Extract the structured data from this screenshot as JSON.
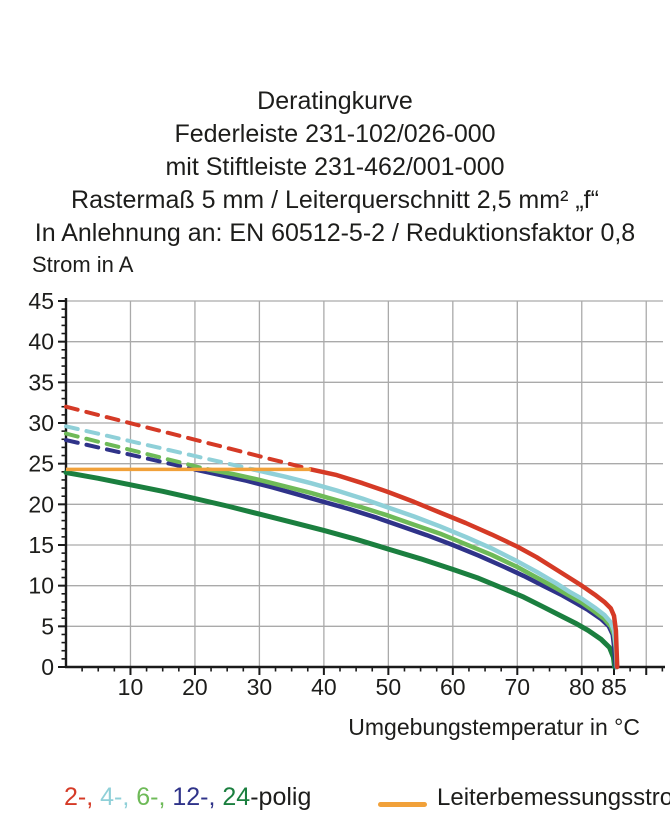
{
  "title_block": {
    "lines": [
      "Deratingkurve",
      "Federleiste 231-102/026-000",
      "mit Stiftleiste 231-462/001-000",
      "Rastermaß 5 mm / Leiterquerschnitt 2,5 mm² „f“",
      "In Anlehnung an: EN 60512-5-2 / Reduktionsfaktor 0,8"
    ]
  },
  "colors": {
    "pole2": "#d53a26",
    "pole4": "#8fd0d8",
    "pole6": "#6eba58",
    "pole12": "#2f3389",
    "pole24": "#1b7f3f",
    "rated": "#f1a13a",
    "grid": "#aaaaaa",
    "axis": "#1a1a1a",
    "text": "#1d1d1b"
  },
  "chart_data": {
    "type": "line",
    "title": "Deratingkurve",
    "ylabel": "Strom in A",
    "xlabel": "Umgebungstemperatur in °C",
    "xlim": [
      0,
      92.6
    ],
    "ylim": [
      0,
      45
    ],
    "grid": true,
    "x_gridlines": [
      10,
      20,
      30,
      40,
      50,
      60,
      70,
      80,
      90
    ],
    "y_gridlines": [
      5,
      10,
      15,
      20,
      25,
      30,
      35,
      40,
      45
    ],
    "x_major_ticks": [
      10,
      20,
      30,
      40,
      50,
      60,
      70,
      80,
      85,
      90
    ],
    "x_tick_labels": [
      10,
      20,
      30,
      40,
      50,
      60,
      70,
      80,
      85
    ],
    "x_minor_step": 2.5,
    "y_major_ticks": [
      0,
      5,
      10,
      15,
      20,
      25,
      30,
      35,
      40,
      45
    ],
    "y_tick_labels": [
      0,
      5,
      10,
      15,
      20,
      25,
      30,
      35,
      40,
      45
    ],
    "y_minor_step": 1,
    "rated_current_line": {
      "label": "Leiterbemessungsstrom",
      "color": "#f1a13a",
      "value": 24.3,
      "x_start": 0,
      "x_end": 38
    },
    "series": [
      {
        "name": "24-polig",
        "color": "#1b7f3f",
        "width": 5,
        "dashed_points": [],
        "solid_points": [
          [
            0,
            23.9
          ],
          [
            5,
            23.2
          ],
          [
            10,
            22.4
          ],
          [
            15,
            21.6
          ],
          [
            20,
            20.7
          ],
          [
            25,
            19.8
          ],
          [
            30,
            18.8
          ],
          [
            35,
            17.8
          ],
          [
            40,
            16.8
          ],
          [
            45,
            15.7
          ],
          [
            50,
            14.5
          ],
          [
            55,
            13.3
          ],
          [
            60,
            12
          ],
          [
            64,
            10.9
          ],
          [
            68,
            9.6
          ],
          [
            71,
            8.6
          ],
          [
            74,
            7.4
          ],
          [
            77,
            6.2
          ],
          [
            79,
            5.4
          ],
          [
            81,
            4.5
          ],
          [
            83,
            3.4
          ],
          [
            84.3,
            2.4
          ],
          [
            84.9,
            1.2
          ],
          [
            85.1,
            0
          ]
        ]
      },
      {
        "name": "12-polig",
        "color": "#2f3389",
        "width": 4.5,
        "dashed_points": [
          [
            0,
            27.9
          ],
          [
            20,
            24.3
          ]
        ],
        "solid_points": [
          [
            20,
            24.3
          ],
          [
            24,
            23.6
          ],
          [
            28,
            22.9
          ],
          [
            32,
            22.1
          ],
          [
            36,
            21.2
          ],
          [
            40,
            20.3
          ],
          [
            44,
            19.4
          ],
          [
            48,
            18.4
          ],
          [
            52,
            17.3
          ],
          [
            56,
            16.2
          ],
          [
            60,
            15
          ],
          [
            64,
            13.7
          ],
          [
            68,
            12.3
          ],
          [
            71,
            11.2
          ],
          [
            74,
            10
          ],
          [
            77,
            8.8
          ],
          [
            79,
            7.9
          ],
          [
            81,
            7
          ],
          [
            83,
            5.9
          ],
          [
            84.2,
            5
          ],
          [
            84.8,
            4
          ],
          [
            85.1,
            2
          ],
          [
            85.3,
            0
          ]
        ]
      },
      {
        "name": "6-polig",
        "color": "#6eba58",
        "width": 4.5,
        "dashed_points": [
          [
            0,
            28.7
          ],
          [
            22,
            24.3
          ]
        ],
        "solid_points": [
          [
            22,
            24.3
          ],
          [
            26,
            23.7
          ],
          [
            30,
            23
          ],
          [
            34,
            22.2
          ],
          [
            38,
            21.4
          ],
          [
            42,
            20.5
          ],
          [
            46,
            19.6
          ],
          [
            50,
            18.6
          ],
          [
            54,
            17.5
          ],
          [
            58,
            16.4
          ],
          [
            62,
            15.1
          ],
          [
            66,
            13.8
          ],
          [
            70,
            12.3
          ],
          [
            73,
            11
          ],
          [
            76,
            9.7
          ],
          [
            78,
            8.8
          ],
          [
            80,
            7.9
          ],
          [
            82,
            6.8
          ],
          [
            83.5,
            5.9
          ],
          [
            84.5,
            5
          ],
          [
            85,
            4
          ],
          [
            85.3,
            2.2
          ],
          [
            85.42,
            0
          ]
        ]
      },
      {
        "name": "4-polig",
        "color": "#8fd0d8",
        "width": 4.5,
        "dashed_points": [
          [
            0,
            29.6
          ],
          [
            29,
            24.3
          ]
        ],
        "solid_points": [
          [
            29,
            24.3
          ],
          [
            34,
            23.4
          ],
          [
            38,
            22.6
          ],
          [
            42,
            21.7
          ],
          [
            46,
            20.7
          ],
          [
            50,
            19.6
          ],
          [
            54,
            18.5
          ],
          [
            58,
            17.3
          ],
          [
            62,
            16
          ],
          [
            66,
            14.6
          ],
          [
            70,
            13
          ],
          [
            73,
            11.7
          ],
          [
            76,
            10.3
          ],
          [
            78,
            9.3
          ],
          [
            80,
            8.4
          ],
          [
            82,
            7.3
          ],
          [
            83.5,
            6.4
          ],
          [
            84.5,
            5.5
          ],
          [
            85,
            4.5
          ],
          [
            85.3,
            2.5
          ],
          [
            85.45,
            0
          ]
        ]
      },
      {
        "name": "2-polig",
        "color": "#d53a26",
        "width": 4.5,
        "dashed_points": [
          [
            0,
            32
          ],
          [
            38,
            24.3
          ]
        ],
        "solid_points": [
          [
            38,
            24.3
          ],
          [
            42,
            23.6
          ],
          [
            46,
            22.6
          ],
          [
            50,
            21.5
          ],
          [
            54,
            20.3
          ],
          [
            58,
            19
          ],
          [
            62,
            17.7
          ],
          [
            66,
            16.3
          ],
          [
            70,
            14.8
          ],
          [
            73,
            13.5
          ],
          [
            76,
            12
          ],
          [
            78,
            11
          ],
          [
            80,
            10
          ],
          [
            82,
            8.9
          ],
          [
            83.5,
            8
          ],
          [
            84.5,
            7.2
          ],
          [
            85,
            6.3
          ],
          [
            85.3,
            4.5
          ],
          [
            85.5,
            0
          ]
        ]
      }
    ]
  },
  "legend": {
    "segments": [
      {
        "label": "2-, ",
        "color": "#d53a26"
      },
      {
        "label": "4-, ",
        "color": "#8fd0d8"
      },
      {
        "label": "6-, ",
        "color": "#6eba58"
      },
      {
        "label": "12-, ",
        "color": "#2f3389"
      },
      {
        "label": "24",
        "color": "#1b7f3f"
      },
      {
        "label": "-polig",
        "color": "#1d1d1b"
      }
    ],
    "rated_label": "Leiterbemessungsstrom"
  }
}
